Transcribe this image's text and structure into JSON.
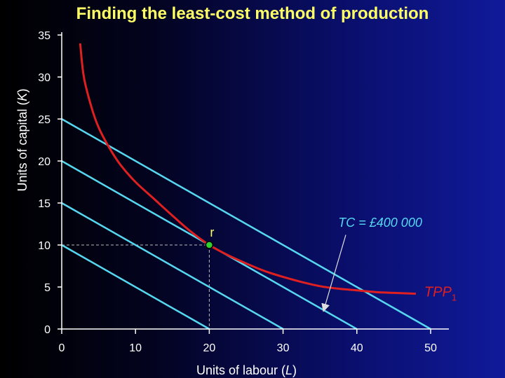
{
  "title": "Finding the least-cost method of production",
  "chart_data": {
    "type": "line",
    "title": "Finding the least-cost method of production",
    "xlabel": {
      "text": "Units of labour (",
      "var": "L",
      "close": ")"
    },
    "ylabel": {
      "text": "Units of capital (",
      "var": "K",
      "close": ")"
    },
    "xlim": [
      0,
      52
    ],
    "ylim": [
      0,
      35
    ],
    "xticks": [
      0,
      10,
      20,
      30,
      40,
      50
    ],
    "yticks": [
      0,
      5,
      10,
      15,
      20,
      25,
      30,
      35
    ],
    "grid": false,
    "isocosts": [
      {
        "x": [
          0,
          20
        ],
        "y": [
          10,
          0
        ]
      },
      {
        "x": [
          0,
          30
        ],
        "y": [
          15,
          0
        ]
      },
      {
        "x": [
          0,
          40
        ],
        "y": [
          20,
          0
        ]
      },
      {
        "x": [
          0,
          50
        ],
        "y": [
          25,
          0
        ]
      }
    ],
    "isoquant": {
      "label": "TPP",
      "label_sub": "1",
      "points": [
        [
          2.5,
          34
        ],
        [
          3,
          30
        ],
        [
          4,
          26.5
        ],
        [
          5,
          24
        ],
        [
          6.5,
          21.5
        ],
        [
          8,
          19.5
        ],
        [
          10,
          17.5
        ],
        [
          12.5,
          15.5
        ],
        [
          15,
          13.5
        ],
        [
          17.5,
          11.6
        ],
        [
          20,
          10
        ],
        [
          22.5,
          8.8
        ],
        [
          25,
          7.8
        ],
        [
          27.5,
          6.9
        ],
        [
          30,
          6.2
        ],
        [
          32.5,
          5.6
        ],
        [
          35,
          5.1
        ],
        [
          37.5,
          4.8
        ],
        [
          40,
          4.6
        ],
        [
          42.5,
          4.4
        ],
        [
          45,
          4.3
        ],
        [
          48,
          4.2
        ]
      ]
    },
    "point": {
      "label": "r",
      "x": 20,
      "y": 10
    },
    "annotation": {
      "text": "TC = £400 000",
      "text_x": 39,
      "text_y": 12.5,
      "arrow_from": [
        38.5,
        11.2
      ],
      "arrow_to": [
        35.5,
        2.2
      ]
    },
    "colors": {
      "axes": "#ffffff",
      "ticks": "#ffffff",
      "isocost": "#55d8f0",
      "isoquant": "#e02020",
      "point_fill": "#30d030",
      "point_label": "#ffff66",
      "annotation": "#55d8f0",
      "tpp_label": "#e02020",
      "guide": "#bbbbbb"
    }
  }
}
